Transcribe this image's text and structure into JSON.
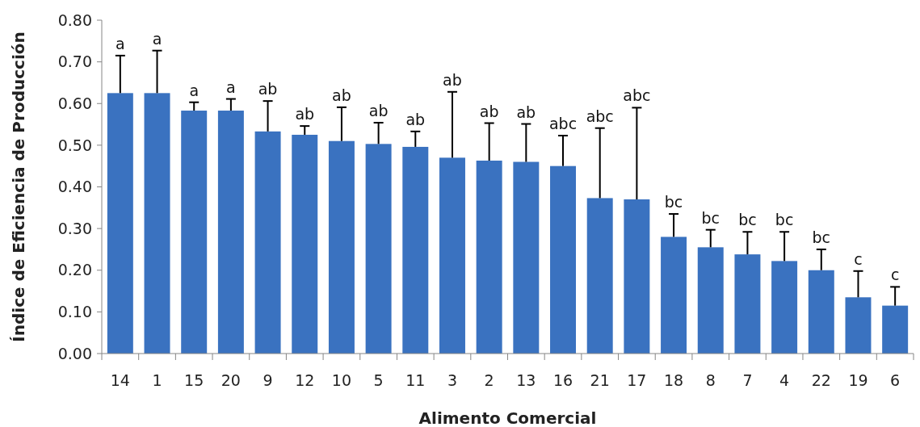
{
  "chart_data": {
    "type": "bar",
    "xlabel": "Alimento Comercial",
    "ylabel": "Índice de Eficiencia de Producción",
    "categories": [
      "14",
      "1",
      "15",
      "20",
      "9",
      "12",
      "10",
      "5",
      "11",
      "3",
      "2",
      "13",
      "16",
      "21",
      "17",
      "18",
      "8",
      "7",
      "4",
      "22",
      "19",
      "6"
    ],
    "values": [
      0.625,
      0.625,
      0.583,
      0.583,
      0.533,
      0.525,
      0.51,
      0.503,
      0.496,
      0.47,
      0.463,
      0.46,
      0.45,
      0.373,
      0.37,
      0.28,
      0.255,
      0.238,
      0.222,
      0.2,
      0.135,
      0.115
    ],
    "errors": [
      [
        0.625,
        0.715
      ],
      [
        0.625,
        0.727
      ],
      [
        0.583,
        0.603
      ],
      [
        0.583,
        0.611
      ],
      [
        0.533,
        0.606
      ],
      [
        0.525,
        0.546
      ],
      [
        0.51,
        0.591
      ],
      [
        0.503,
        0.554
      ],
      [
        0.496,
        0.533
      ],
      [
        0.47,
        0.628
      ],
      [
        0.463,
        0.553
      ],
      [
        0.46,
        0.551
      ],
      [
        0.45,
        0.523
      ],
      [
        0.373,
        0.541
      ],
      [
        0.37,
        0.59
      ],
      [
        0.28,
        0.335
      ],
      [
        0.255,
        0.297
      ],
      [
        0.238,
        0.292
      ],
      [
        0.222,
        0.292
      ],
      [
        0.2,
        0.25
      ],
      [
        0.135,
        0.198
      ],
      [
        0.115,
        0.16
      ]
    ],
    "color": "#3a72c0",
    "ylim": [
      0,
      0.8
    ],
    "yticks": [
      {
        "value": 0,
        "label": "0.00"
      },
      {
        "value": 0.1,
        "label": "0.10"
      },
      {
        "value": 0.2,
        "label": "0.20"
      },
      {
        "value": 0.3,
        "label": "0.30"
      },
      {
        "value": 0.4,
        "label": "0.40"
      },
      {
        "value": 0.5,
        "label": "0.50"
      },
      {
        "value": 0.6,
        "label": "0.60"
      },
      {
        "value": 0.7,
        "label": "0.70"
      },
      {
        "value": 0.8,
        "label": "0.80"
      }
    ],
    "grid": false,
    "annotations": [
      {
        "text": "a",
        "x": "14",
        "y": 0.715
      },
      {
        "text": "a",
        "x": "1",
        "y": 0.727
      },
      {
        "text": "a",
        "x": "15",
        "y": 0.603
      },
      {
        "text": "a",
        "x": "20",
        "y": 0.611
      },
      {
        "text": "ab",
        "x": "9",
        "y": 0.606
      },
      {
        "text": "ab",
        "x": "12",
        "y": 0.546
      },
      {
        "text": "ab",
        "x": "10",
        "y": 0.591
      },
      {
        "text": "ab",
        "x": "5",
        "y": 0.554
      },
      {
        "text": "ab",
        "x": "11",
        "y": 0.533
      },
      {
        "text": "ab",
        "x": "3",
        "y": 0.628
      },
      {
        "text": "ab",
        "x": "2",
        "y": 0.553
      },
      {
        "text": "ab",
        "x": "13",
        "y": 0.551
      },
      {
        "text": "abc",
        "x": "16",
        "y": 0.523
      },
      {
        "text": "abc",
        "x": "21",
        "y": 0.541
      },
      {
        "text": "abc",
        "x": "17",
        "y": 0.59
      },
      {
        "text": "bc",
        "x": "18",
        "y": 0.335
      },
      {
        "text": "bc",
        "x": "8",
        "y": 0.297
      },
      {
        "text": "bc",
        "x": "7",
        "y": 0.292
      },
      {
        "text": "bc",
        "x": "4",
        "y": 0.292
      },
      {
        "text": "bc",
        "x": "22",
        "y": 0.25
      },
      {
        "text": "c",
        "x": "19",
        "y": 0.198
      },
      {
        "text": "c",
        "x": "6",
        "y": 0.16
      }
    ]
  }
}
